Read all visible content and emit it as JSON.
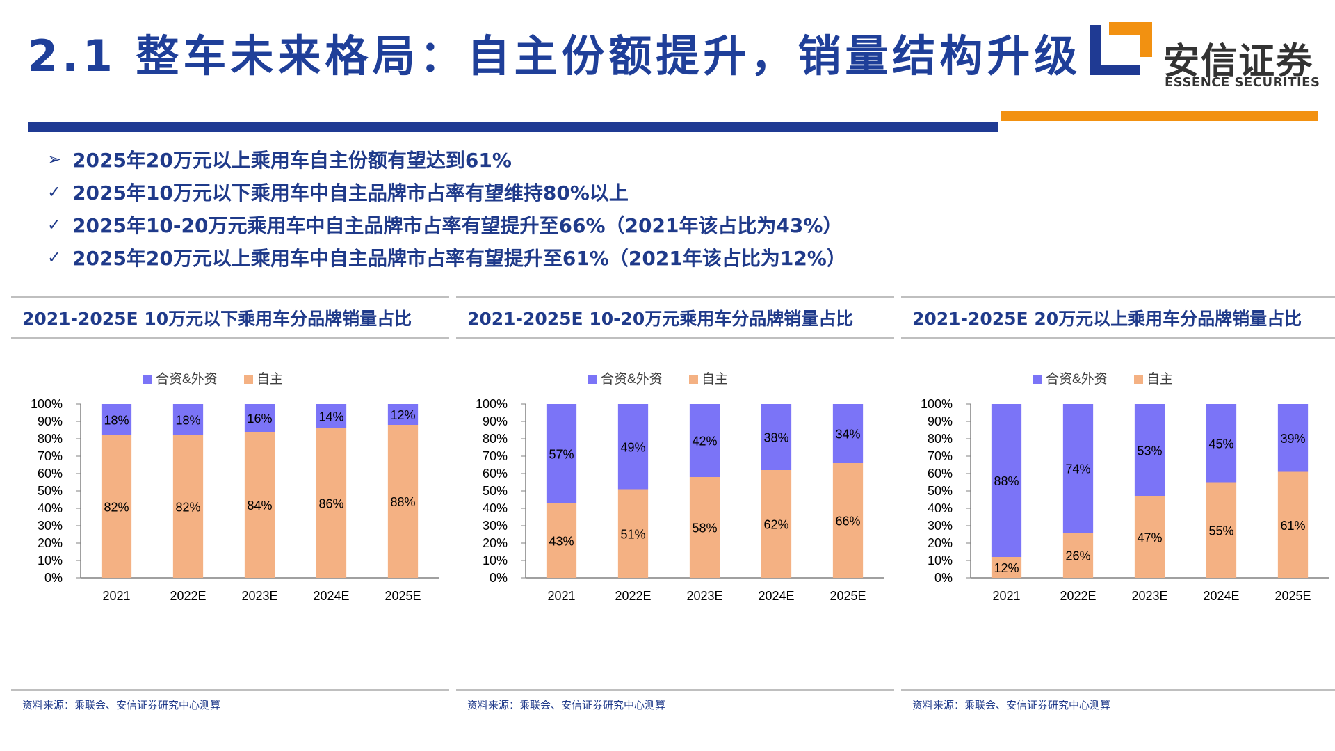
{
  "header": {
    "title": "2.1 整车未来格局：自主份额提升，销量结构升级",
    "logo_cn": "安信证券",
    "logo_en": "ESSENCE SECURITIES"
  },
  "bullets": [
    {
      "marker": "➢",
      "text": "2025年20万元以上乘用车自主份额有望达到61%"
    },
    {
      "marker": "✓",
      "text": "2025年10万元以下乘用车中自主品牌市占率有望维持80%以上"
    },
    {
      "marker": "✓",
      "text": "2025年10-20万元乘用车中自主品牌市占率有望提升至66%（2021年该占比为43%）"
    },
    {
      "marker": "✓",
      "text": "2025年20万元以上乘用车中自主品牌市占率有望提升至61%（2021年该占比为12%）"
    }
  ],
  "panels": [
    {
      "title": "2021-2025E 10万元以下乘用车分品牌销量占比",
      "source": "资料来源：乘联会、安信证券研究中心测算"
    },
    {
      "title": "2021-2025E 10-20万元乘用车分品牌销量占比",
      "source": "资料来源：乘联会、安信证券研究中心测算"
    },
    {
      "title": "2021-2025E 20万元以上乘用车分品牌销量占比",
      "source": "资料来源：乘联会、安信证券研究中心测算"
    }
  ],
  "colors": {
    "title": "#1f3f99",
    "foreign": "#7b74f7",
    "domestic": "#f4b183",
    "blue_bar": "#1f3a93",
    "orange_bar": "#f29111"
  },
  "chart_data": [
    {
      "type": "bar",
      "stacked": true,
      "categories": [
        "2021",
        "2022E",
        "2023E",
        "2024E",
        "2025E"
      ],
      "series": [
        {
          "name": "自主",
          "values": [
            82,
            82,
            84,
            86,
            88
          ]
        },
        {
          "name": "合资&外资",
          "values": [
            18,
            18,
            16,
            14,
            12
          ]
        }
      ],
      "ylim": [
        0,
        100
      ],
      "yticks": [
        "0%",
        "10%",
        "20%",
        "30%",
        "40%",
        "50%",
        "60%",
        "70%",
        "80%",
        "90%",
        "100%"
      ],
      "legend": "top"
    },
    {
      "type": "bar",
      "stacked": true,
      "categories": [
        "2021",
        "2022E",
        "2023E",
        "2024E",
        "2025E"
      ],
      "series": [
        {
          "name": "自主",
          "values": [
            43,
            51,
            58,
            62,
            66
          ]
        },
        {
          "name": "合资&外资",
          "values": [
            57,
            49,
            42,
            38,
            34
          ]
        }
      ],
      "ylim": [
        0,
        100
      ],
      "yticks": [
        "0%",
        "10%",
        "20%",
        "30%",
        "40%",
        "50%",
        "60%",
        "70%",
        "80%",
        "90%",
        "100%"
      ],
      "legend": "top"
    },
    {
      "type": "bar",
      "stacked": true,
      "categories": [
        "2021",
        "2022E",
        "2023E",
        "2024E",
        "2025E"
      ],
      "series": [
        {
          "name": "自主",
          "values": [
            12,
            26,
            47,
            55,
            61
          ]
        },
        {
          "name": "合资&外资",
          "values": [
            88,
            74,
            53,
            45,
            39
          ]
        }
      ],
      "ylim": [
        0,
        100
      ],
      "yticks": [
        "0%",
        "10%",
        "20%",
        "30%",
        "40%",
        "50%",
        "60%",
        "70%",
        "80%",
        "90%",
        "100%"
      ],
      "legend": "top"
    }
  ]
}
